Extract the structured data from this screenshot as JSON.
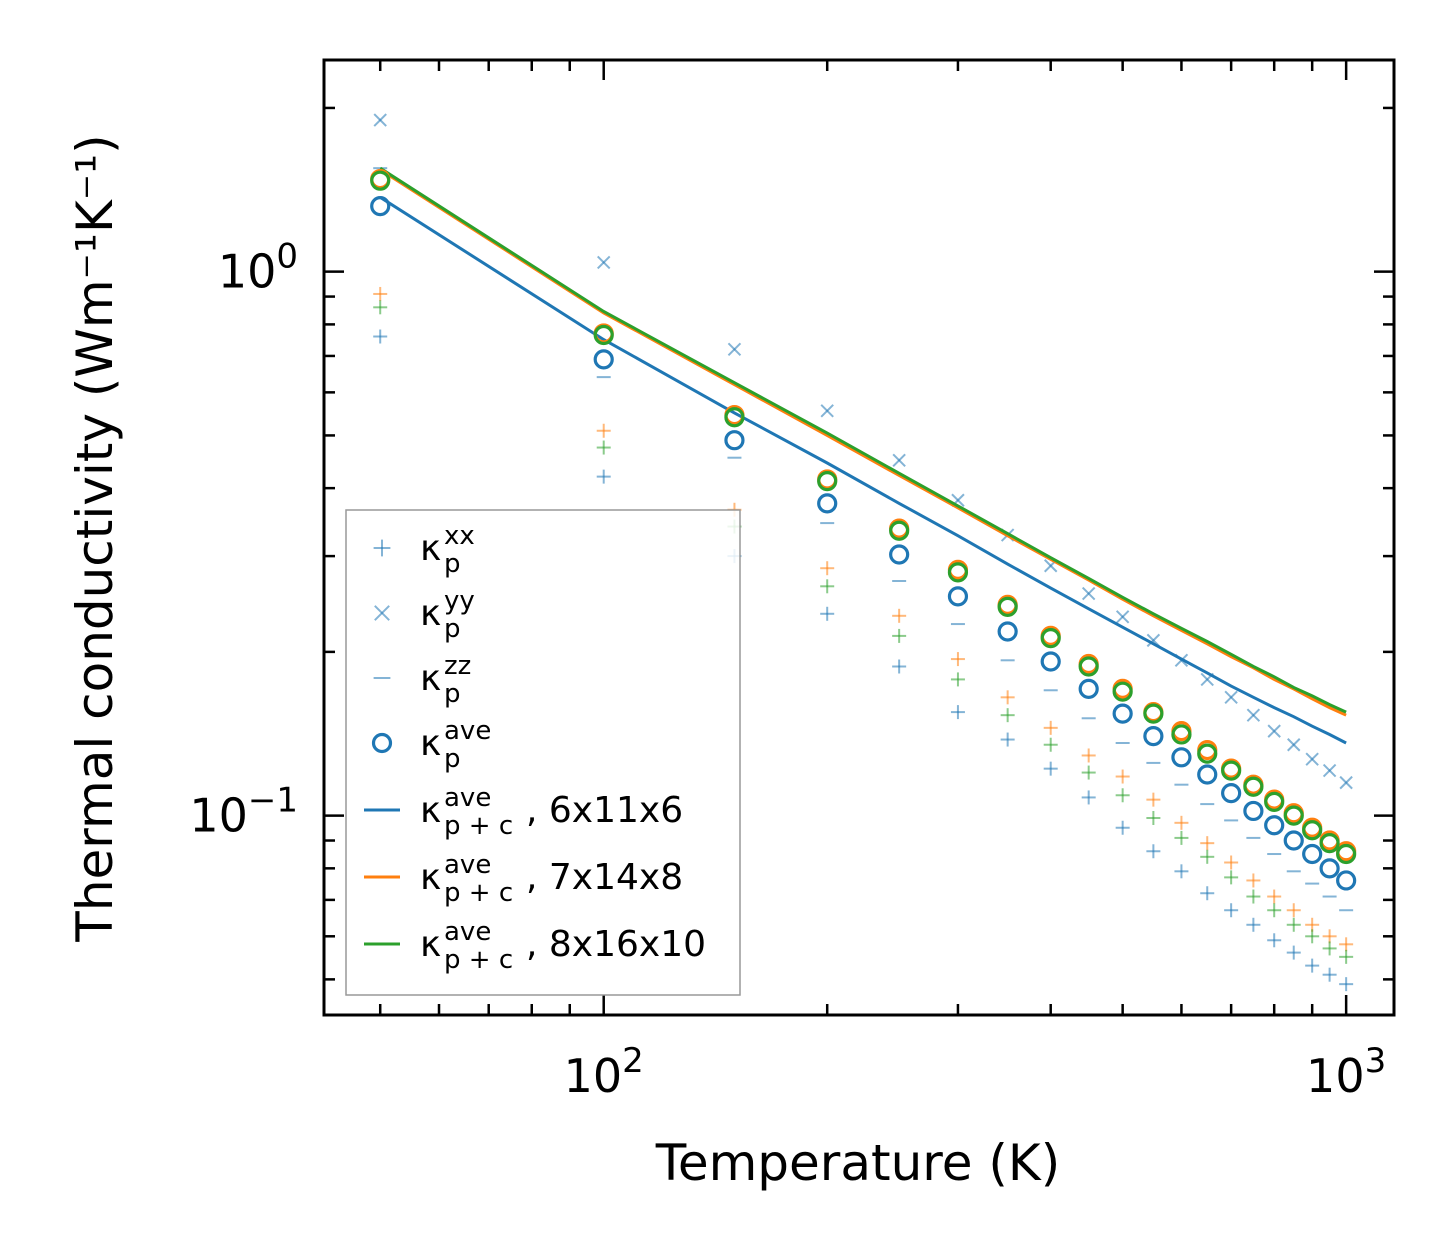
{
  "chart_data": {
    "type": "scatter",
    "xscale": "log",
    "yscale": "log",
    "xlim": [
      42,
      1160
    ],
    "ylim": [
      0.043,
      2.45
    ],
    "xlabel": "Temperature (K)",
    "ylabel": "Thermal conductivity (Wm⁻¹K⁻¹)",
    "xticks": [
      {
        "value": 100,
        "base": "10",
        "exp": "2"
      },
      {
        "value": 1000,
        "base": "10",
        "exp": "3"
      }
    ],
    "yticks": [
      {
        "value": 1.0,
        "base": "10",
        "exp": "0"
      },
      {
        "value": 0.1,
        "base": "10",
        "exp": "−1"
      }
    ],
    "colors": {
      "blue": "#1f77b4",
      "orange": "#ff7f0e",
      "green": "#2ca02c"
    },
    "x": [
      50,
      100,
      150,
      200,
      250,
      300,
      350,
      400,
      450,
      500,
      550,
      600,
      650,
      700,
      750,
      800,
      850,
      900,
      950,
      1000
    ],
    "series": [
      {
        "name": "kxx_blue",
        "marker": "+",
        "color": "#1f77b4",
        "values": [
          0.76,
          0.42,
          0.3,
          0.235,
          0.188,
          0.155,
          0.138,
          0.122,
          0.108,
          0.095,
          0.086,
          0.079,
          0.072,
          0.067,
          0.063,
          0.059,
          0.056,
          0.053,
          0.051,
          0.049
        ]
      },
      {
        "name": "kxx_orange",
        "marker": "+",
        "color": "#ff7f0e",
        "values": [
          0.91,
          0.51,
          0.365,
          0.285,
          0.233,
          0.194,
          0.165,
          0.145,
          0.129,
          0.118,
          0.107,
          0.097,
          0.089,
          0.082,
          0.076,
          0.071,
          0.067,
          0.063,
          0.06,
          0.058
        ]
      },
      {
        "name": "kxx_green",
        "marker": "+",
        "color": "#2ca02c",
        "values": [
          0.86,
          0.475,
          0.34,
          0.264,
          0.214,
          0.178,
          0.153,
          0.135,
          0.12,
          0.109,
          0.099,
          0.091,
          0.084,
          0.077,
          0.071,
          0.067,
          0.063,
          0.06,
          0.057,
          0.055
        ]
      },
      {
        "name": "kyy",
        "marker": "x",
        "color": "#1f77b4",
        "values": [
          1.9,
          1.04,
          0.72,
          0.555,
          0.45,
          0.38,
          0.328,
          0.288,
          0.256,
          0.232,
          0.21,
          0.193,
          0.178,
          0.165,
          0.153,
          0.143,
          0.135,
          0.127,
          0.121,
          0.115
        ]
      },
      {
        "name": "kzz",
        "marker": "_",
        "color": "#1f77b4",
        "values": [
          1.55,
          0.64,
          0.455,
          0.345,
          0.27,
          0.225,
          0.193,
          0.17,
          0.151,
          0.136,
          0.125,
          0.114,
          0.105,
          0.098,
          0.091,
          0.085,
          0.079,
          0.075,
          0.071,
          0.067
        ]
      },
      {
        "name": "kave_blue",
        "marker": "o",
        "color": "#1f77b4",
        "values": [
          1.32,
          0.69,
          0.49,
          0.375,
          0.302,
          0.253,
          0.218,
          0.192,
          0.171,
          0.154,
          0.14,
          0.128,
          0.119,
          0.11,
          0.102,
          0.096,
          0.09,
          0.085,
          0.08,
          0.076
        ]
      },
      {
        "name": "kave_orange",
        "marker": "o",
        "color": "#ff7f0e",
        "values": [
          1.48,
          0.77,
          0.545,
          0.415,
          0.337,
          0.283,
          0.244,
          0.214,
          0.19,
          0.171,
          0.155,
          0.143,
          0.132,
          0.122,
          0.114,
          0.107,
          0.101,
          0.095,
          0.09,
          0.086
        ]
      },
      {
        "name": "kave_green",
        "marker": "o",
        "color": "#2ca02c",
        "values": [
          1.47,
          0.765,
          0.54,
          0.412,
          0.334,
          0.28,
          0.242,
          0.212,
          0.188,
          0.169,
          0.154,
          0.141,
          0.13,
          0.121,
          0.113,
          0.106,
          0.1,
          0.094,
          0.089,
          0.085
        ]
      },
      {
        "name": "kpc_6x11x6",
        "marker": "line",
        "color": "#1f77b4",
        "values": [
          1.37,
          0.75,
          0.55,
          0.445,
          0.375,
          0.327,
          0.29,
          0.262,
          0.24,
          0.222,
          0.207,
          0.194,
          0.183,
          0.173,
          0.165,
          0.158,
          0.152,
          0.146,
          0.141,
          0.136
        ]
      },
      {
        "name": "kpc_7x14x8",
        "marker": "line",
        "color": "#ff7f0e",
        "values": [
          1.54,
          0.84,
          0.62,
          0.5,
          0.422,
          0.368,
          0.327,
          0.296,
          0.271,
          0.25,
          0.233,
          0.219,
          0.207,
          0.196,
          0.187,
          0.178,
          0.171,
          0.164,
          0.158,
          0.153
        ]
      },
      {
        "name": "kpc_8x16x10",
        "marker": "line",
        "color": "#2ca02c",
        "values": [
          1.55,
          0.845,
          0.625,
          0.505,
          0.426,
          0.371,
          0.33,
          0.298,
          0.273,
          0.252,
          0.235,
          0.221,
          0.209,
          0.198,
          0.188,
          0.18,
          0.172,
          0.166,
          0.16,
          0.155
        ]
      }
    ],
    "legend": {
      "position": "lower-left",
      "entries": [
        {
          "marker": "+",
          "color": "#1f77b4",
          "sym": "κ",
          "sub": "p",
          "sup": "xx",
          "rest": ""
        },
        {
          "marker": "x",
          "color": "#1f77b4",
          "sym": "κ",
          "sub": "p",
          "sup": "yy",
          "rest": ""
        },
        {
          "marker": "_",
          "color": "#1f77b4",
          "sym": "κ",
          "sub": "p",
          "sup": "zz",
          "rest": ""
        },
        {
          "marker": "o",
          "color": "#1f77b4",
          "sym": "κ",
          "sub": "p",
          "sup": "ave",
          "rest": ""
        },
        {
          "marker": "line",
          "color": "#1f77b4",
          "sym": "κ",
          "sub": "p + c",
          "sup": "ave",
          "rest": ", 6x11x6"
        },
        {
          "marker": "line",
          "color": "#ff7f0e",
          "sym": "κ",
          "sub": "p + c",
          "sup": "ave",
          "rest": ", 7x14x8"
        },
        {
          "marker": "line",
          "color": "#2ca02c",
          "sym": "κ",
          "sub": "p + c",
          "sup": "ave",
          "rest": ", 8x16x10"
        }
      ]
    }
  }
}
